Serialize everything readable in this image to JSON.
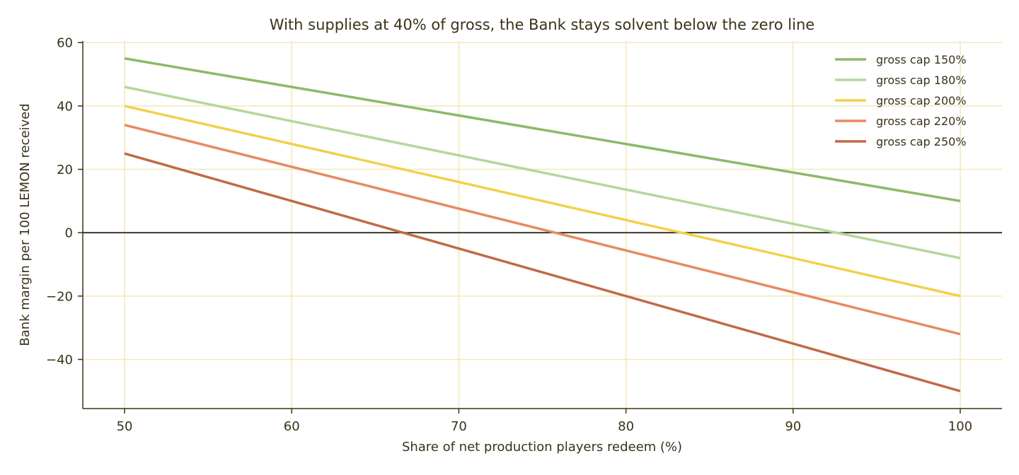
{
  "chart_data": {
    "type": "line",
    "title": "With supplies at 40% of gross, the Bank stays solvent below the zero line",
    "xlabel": "Share of net production players redeem (%)",
    "ylabel": "Bank margin per 100 LEMON received",
    "xlim": [
      47.5,
      102.5
    ],
    "ylim": [
      -55.5,
      60.5
    ],
    "x_ticks": [
      50,
      60,
      70,
      80,
      90,
      100
    ],
    "y_ticks": [
      60,
      40,
      20,
      0,
      -20,
      -40
    ],
    "y_tick_labels": [
      "60",
      "40",
      "20",
      "0",
      "−20",
      "−40"
    ],
    "grid": true,
    "reference_line_y": 0,
    "legend_position": "top-right",
    "x": [
      50,
      100
    ],
    "series": [
      {
        "name": "gross cap 150%",
        "color": "#8aba6a",
        "values": [
          55,
          10
        ]
      },
      {
        "name": "gross cap 180%",
        "color": "#b5d79c",
        "values": [
          46,
          -8
        ]
      },
      {
        "name": "gross cap 200%",
        "color": "#f2d14b",
        "values": [
          40,
          -20
        ]
      },
      {
        "name": "gross cap 220%",
        "color": "#e38c62",
        "values": [
          34,
          -32
        ]
      },
      {
        "name": "gross cap 250%",
        "color": "#c06a47",
        "values": [
          25,
          -50
        ]
      }
    ]
  }
}
